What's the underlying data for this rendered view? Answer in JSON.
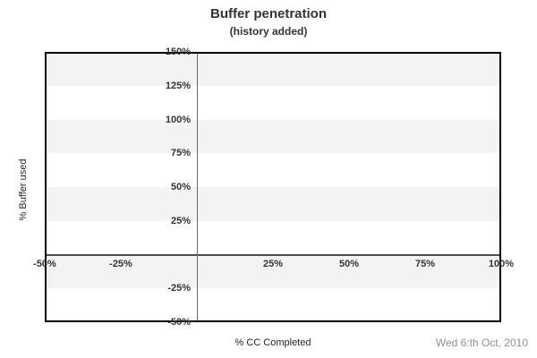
{
  "colors": {
    "background": "#ffffff",
    "band": "#f3f3f3",
    "plot_border": "#000000",
    "x_axis_line": "#4d4d4d",
    "y_axis_line": "#666666",
    "title_text": "#333333",
    "tick_text": "#333333",
    "axis_title_text": "#222222",
    "date_text": "#8f8f8f"
  },
  "chart_data": {
    "type": "line",
    "title": "Buffer penetration",
    "subtitle": "(history added)",
    "xlabel": "% CC Completed",
    "ylabel": "% Buffer used",
    "annotation_date": "Wed 6:th Oct, 2010",
    "xlim": [
      -50,
      100
    ],
    "ylim": [
      -50,
      150
    ],
    "x_ticks": [
      {
        "value": -50,
        "label": "-50%"
      },
      {
        "value": -25,
        "label": "-25%"
      },
      {
        "value": 25,
        "label": "25%"
      },
      {
        "value": 50,
        "label": "50%"
      },
      {
        "value": 75,
        "label": "75%"
      },
      {
        "value": 100,
        "label": "100%"
      }
    ],
    "y_ticks": [
      {
        "value": 150,
        "label": "150%"
      },
      {
        "value": 125,
        "label": "125%"
      },
      {
        "value": 100,
        "label": "100%"
      },
      {
        "value": 75,
        "label": "75%"
      },
      {
        "value": 50,
        "label": "50%"
      },
      {
        "value": 25,
        "label": "25%"
      },
      {
        "value": -25,
        "label": "-25%"
      },
      {
        "value": -50,
        "label": "-50%"
      }
    ],
    "gray_bands": [
      [
        125,
        150
      ],
      [
        75,
        100
      ],
      [
        25,
        50
      ],
      [
        -25,
        0
      ]
    ],
    "zero_lines": {
      "horizontal_at_y": 0,
      "vertical_at_x": 0
    },
    "grid": "striped-horizontal-bands-every-25pct",
    "legend": "none",
    "series": []
  }
}
